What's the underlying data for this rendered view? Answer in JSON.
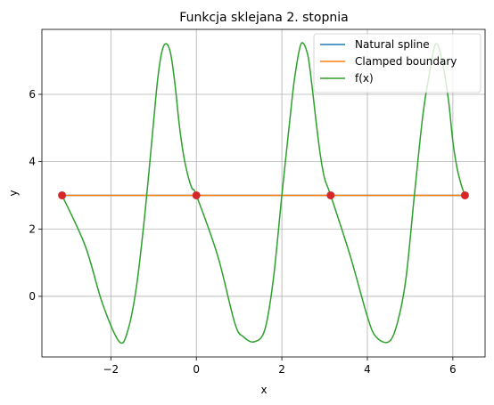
{
  "chart_data": {
    "type": "line",
    "title": "Funkcja sklejana 2. stopnia",
    "xlabel": "x",
    "ylabel": "y",
    "xlim": [
      -3.613,
      6.754
    ],
    "ylim": [
      -1.8,
      7.93
    ],
    "xticks": [
      -2,
      0,
      2,
      4,
      6
    ],
    "yticks": [
      0,
      2,
      4,
      6
    ],
    "grid": true,
    "legend": "top-right",
    "series": [
      {
        "name": "Natural spline",
        "color": "#1f77b4",
        "x": [
          -3.1416,
          6.2832
        ],
        "y": [
          3.0,
          3.0
        ]
      },
      {
        "name": "Clamped boundary",
        "color": "#ff7f0e",
        "x": [
          -3.1416,
          6.2832
        ],
        "y": [
          3.0,
          3.0
        ]
      },
      {
        "name": "f(x)",
        "color": "#2ca02c",
        "x": [
          -3.1416,
          -2.6,
          -2.2,
          -1.8,
          -1.6,
          -1.4,
          -1.2,
          -1.0,
          -0.9,
          -0.8,
          -0.7,
          -0.6,
          -0.5,
          -0.4,
          -0.3,
          -0.2,
          -0.1,
          0.0,
          0.5,
          0.9,
          1.1,
          1.35,
          1.6,
          1.8,
          2.0,
          2.2,
          2.3,
          2.45,
          2.6,
          2.7,
          2.8,
          2.9,
          3.0,
          3.1416,
          3.6,
          4.0,
          4.2,
          4.5,
          4.7,
          4.9,
          5.1,
          5.3,
          5.45,
          5.6,
          5.75,
          5.9,
          6.0,
          6.1,
          6.2,
          6.2832
        ],
        "y": [
          3.0,
          1.5,
          -0.2,
          -1.35,
          -1.0,
          0.3,
          2.5,
          5.2,
          6.5,
          7.3,
          7.5,
          7.2,
          6.3,
          5.1,
          4.2,
          3.6,
          3.2,
          3.0,
          1.2,
          -0.8,
          -1.2,
          -1.35,
          -1.0,
          0.5,
          3.0,
          5.4,
          6.5,
          7.5,
          7.2,
          6.3,
          5.2,
          4.2,
          3.5,
          3.0,
          1.2,
          -0.6,
          -1.2,
          -1.35,
          -0.8,
          0.5,
          3.0,
          5.4,
          6.6,
          7.5,
          7.0,
          5.8,
          4.6,
          3.8,
          3.3,
          3.0
        ]
      }
    ],
    "points": {
      "color": "#d62728",
      "x": [
        -3.1416,
        0.0,
        3.1416,
        6.2832
      ],
      "y": [
        3.0,
        3.0,
        3.0,
        3.0
      ]
    }
  }
}
